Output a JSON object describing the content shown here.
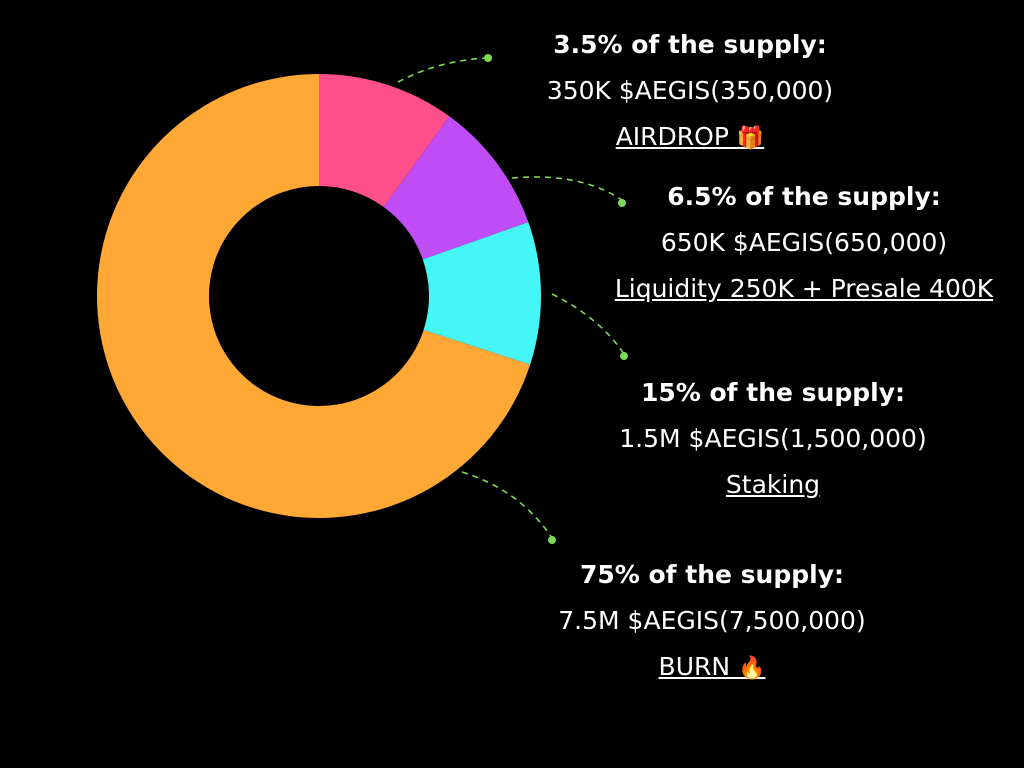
{
  "chart_data": {
    "type": "pie",
    "style": "donut",
    "slices": [
      {
        "value": 3.5,
        "color": "#ff4f8b"
      },
      {
        "value": 6.5,
        "color": "#c04cf5"
      },
      {
        "value": 15,
        "color": "#46f6f6"
      },
      {
        "value": 75,
        "color": "#ffa835"
      }
    ],
    "annotations": [
      {
        "head": "3.5% of the supply:",
        "amount": "350K $AEGIS(350,000)",
        "purpose": "AIRDROP",
        "emoji": "🎁"
      },
      {
        "head": "6.5% of the supply:",
        "amount": "650K $AEGIS(650,000)",
        "purpose": "Liquidity 250K + Presale 400K",
        "emoji": ""
      },
      {
        "head": "15% of the supply:",
        "amount": "1.5M $AEGIS(1,500,000)",
        "purpose": "Staking",
        "emoji": ""
      },
      {
        "head": "75% of the supply:",
        "amount": "7.5M $AEGIS(7,500,000)",
        "purpose": "BURN",
        "emoji": "🔥"
      }
    ],
    "arrow_color": "#7ed957",
    "background": "#000000"
  }
}
